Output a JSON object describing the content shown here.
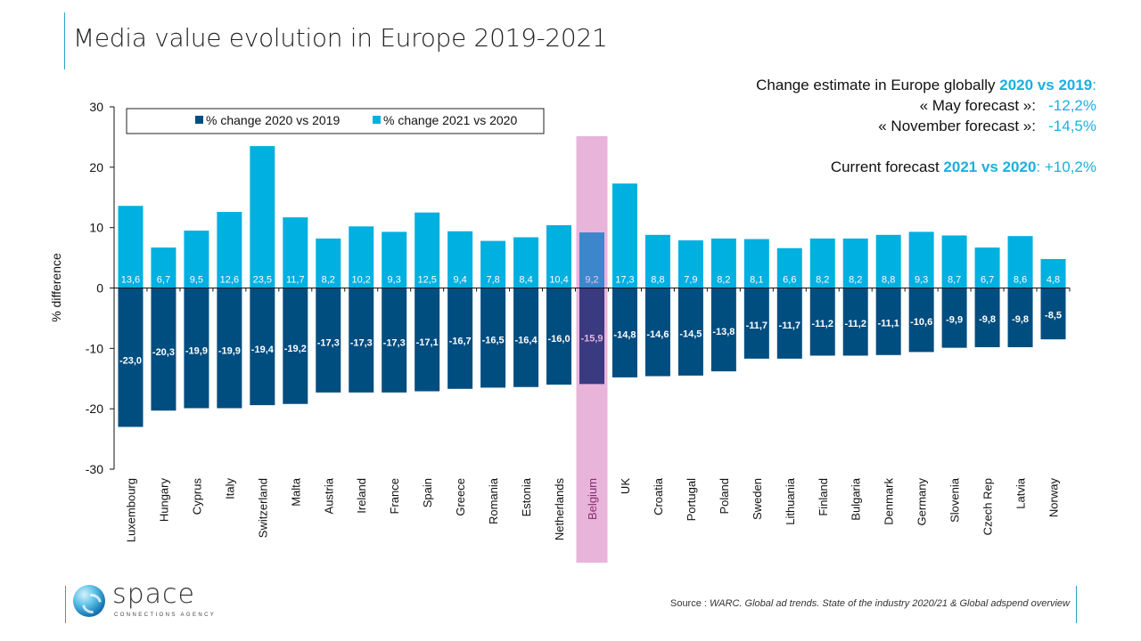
{
  "title": "Media value evolution in Europe 2019-2021",
  "summary": {
    "line1_prefix": "Change estimate in Europe globally ",
    "line1_highlight": "2020 vs 2019",
    "line1_suffix": ":",
    "may_label": "« May  forecast »:",
    "may_value": "-12,2%",
    "nov_label": "« November forecast »:",
    "nov_value": "-14,5%",
    "current_prefix": "Current forecast ",
    "current_highlight": "2021 vs 2020",
    "current_suffix": ": +10,2%"
  },
  "colors": {
    "series_2020": "#004d80",
    "series_2021": "#00b0e0",
    "highlight_band": "#e8b4da",
    "highlight_2020": "#3a3a80",
    "highlight_2021": "#3d86cc",
    "accent_line": "#2ba3c4"
  },
  "chart_data": {
    "type": "bar",
    "title": "Media value evolution in Europe 2019-2021",
    "xlabel": "",
    "ylabel": "% difference",
    "ylim": [
      -30,
      30
    ],
    "yticks": [
      -30,
      -20,
      -10,
      0,
      10,
      20,
      30
    ],
    "grid": false,
    "legend_position": "top-left",
    "highlighted_category": "Belgium",
    "categories": [
      "Luxembourg",
      "Hungary",
      "Cyprus",
      "Italy",
      "Switzerland",
      "Malta",
      "Austria",
      "Ireland",
      "France",
      "Spain",
      "Greece",
      "Romania",
      "Estonia",
      "Netherlands",
      "Belgium",
      "UK",
      "Croatia",
      "Portugal",
      "Poland",
      "Sweden",
      "Lithuania",
      "Finland",
      "Bulgaria",
      "Denmark",
      "Germany",
      "Slovenia",
      "Czech Rep",
      "Latvia",
      "Norway"
    ],
    "series": [
      {
        "name": "% change 2020 vs 2019",
        "values": [
          -23.0,
          -20.3,
          -19.9,
          -19.9,
          -19.4,
          -19.2,
          -17.3,
          -17.3,
          -17.3,
          -17.1,
          -16.7,
          -16.5,
          -16.4,
          -16.0,
          -15.9,
          -14.8,
          -14.6,
          -14.5,
          -13.8,
          -11.7,
          -11.7,
          -11.2,
          -11.2,
          -11.1,
          -10.6,
          -9.9,
          -9.8,
          -9.8,
          -8.5
        ],
        "labels": [
          "-23,0",
          "-20,3",
          "-19,9",
          "-19,9",
          "-19,4",
          "-19,2",
          "-17,3",
          "-17,3",
          "-17,3",
          "-17,1",
          "-16,7",
          "-16,5",
          "-16,4",
          "-16,0",
          "-15,9",
          "-14,8",
          "-14,6",
          "-14,5",
          "-13,8",
          "-11,7",
          "-11,7",
          "-11,2",
          "-11,2",
          "-11,1",
          "-10,6",
          "-9,9",
          "-9,8",
          "-9,8",
          "-8,5"
        ]
      },
      {
        "name": "% change 2021 vs 2020",
        "values": [
          13.6,
          6.7,
          9.5,
          12.6,
          23.5,
          11.7,
          8.2,
          10.2,
          9.3,
          12.5,
          9.4,
          7.8,
          8.4,
          10.4,
          9.2,
          17.3,
          8.8,
          7.9,
          8.2,
          8.1,
          6.6,
          8.2,
          8.2,
          8.8,
          9.3,
          8.7,
          6.7,
          8.6,
          4.8
        ],
        "labels": [
          "13,6",
          "6,7",
          "9,5",
          "12,6",
          "23,5",
          "11,7",
          "8,2",
          "10,2",
          "9,3",
          "12,5",
          "9,4",
          "7,8",
          "8,4",
          "10,4",
          "9,2",
          "17,3",
          "8,8",
          "7,9",
          "8,2",
          "8,1",
          "6,6",
          "8,2",
          "8,2",
          "8,8",
          "9,3",
          "8,7",
          "6,7",
          "8,6",
          "4,8"
        ]
      }
    ]
  },
  "logo": {
    "word": "space",
    "tagline": "CONNECTIONS AGENCY"
  },
  "source": {
    "prefix": "Source : ",
    "text": "WARC. Global ad trends. State of the industry 2020/21 & Global adspend overview"
  }
}
